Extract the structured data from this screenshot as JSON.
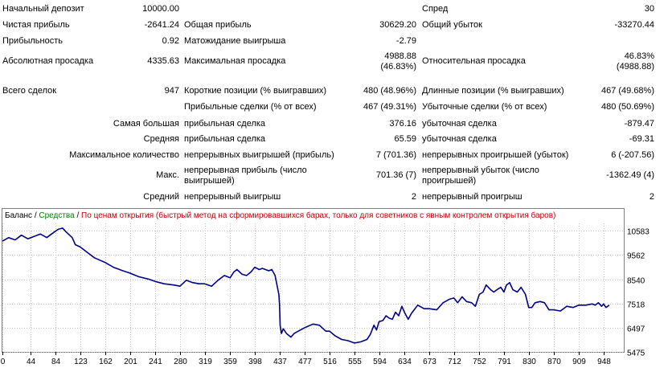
{
  "stats": {
    "deposit_label": "Начальный депозит",
    "deposit_value": "10000.00",
    "spread_label": "Спред",
    "spread_value": "30",
    "net_profit_label": "Чистая прибыль",
    "net_profit_value": "-2641.24",
    "gross_profit_label": "Общая прибыль",
    "gross_profit_value": "30629.20",
    "gross_loss_label": "Общий убыток",
    "gross_loss_value": "-33270.44",
    "profit_factor_label": "Прибыльность",
    "profit_factor_value": "0.92",
    "expected_payoff_label": "Матожидание выигрыша",
    "expected_payoff_value": "-2.79",
    "abs_drawdown_label": "Абсолютная просадка",
    "abs_drawdown_value": "4335.63",
    "max_drawdown_label": "Максимальная просадка",
    "max_drawdown_value_1": "4988.88",
    "max_drawdown_value_2": "(46.83%)",
    "rel_drawdown_label": "Относительная просадка",
    "rel_drawdown_value_1": "46.83%",
    "rel_drawdown_value_2": "(4988.88)",
    "total_trades_label": "Всего сделок",
    "total_trades_value": "947",
    "short_label": "Короткие позиции (% выигравших)",
    "short_value": "480 (48.96%)",
    "long_label": "Длинные позиции (% выигравших)",
    "long_value": "467 (49.68%)",
    "profit_trades_label": "Прибыльные сделки (% от всех)",
    "profit_trades_value": "467 (49.31%)",
    "loss_trades_label": "Убыточные сделки (% от всех)",
    "loss_trades_value": "480 (50.69%)",
    "largest_label": "Самая большая",
    "largest_profit_label": "прибыльная сделка",
    "largest_profit_value": "376.16",
    "largest_loss_label": "убыточная сделка",
    "largest_loss_value": "-879.47",
    "average_label": "Средняя",
    "average_profit_label": "прибыльная сделка",
    "average_profit_value": "65.59",
    "average_loss_label": "убыточная сделка",
    "average_loss_value": "-69.31",
    "max_count_label": "Максимальное количество",
    "max_consec_wins_label": "непрерывных выигрышей (прибыль)",
    "max_consec_wins_value": "7 (701.36)",
    "max_consec_losses_label": "непрерывных проигрышей (убыток)",
    "max_consec_losses_value": "6 (-207.56)",
    "max_label": "Макс.",
    "max_consec_profit_label_1": "непрерывная прибыль (число",
    "max_consec_profit_label_2": "выигрышей)",
    "max_consec_profit_value": "701.36 (7)",
    "max_consec_loss_label_1": "непрерывный убыток (число",
    "max_consec_loss_label_2": "проигрышей)",
    "max_consec_loss_value": "-1362.49 (4)",
    "avg_label": "Средний",
    "avg_consec_wins_label": "непрерывный выигрыш",
    "avg_consec_wins_value": "2",
    "avg_consec_losses_label": "непрерывный проигрыш",
    "avg_consec_losses_value": "2"
  },
  "legend": {
    "balance": "Баланс",
    "sep1": " / ",
    "equity": "Средства",
    "sep2": " / ",
    "mode": "По ценам открытия (быстрый метод на сформировавшихся барах, только для советников с явным контролем открытия баров)"
  },
  "colors": {
    "balance": "#00008b",
    "equity": "#008000",
    "mode": "#c00000",
    "grid": "#c0c0c0"
  },
  "chart_data": {
    "type": "line",
    "x_ticks": [
      0,
      44,
      84,
      123,
      162,
      201,
      241,
      280,
      319,
      359,
      398,
      437,
      477,
      516,
      555,
      594,
      634,
      673,
      712,
      752,
      791,
      830,
      870,
      909,
      948
    ],
    "y_ticks": [
      5475,
      6497,
      7518,
      8540,
      9562,
      10583
    ],
    "ylim": [
      5475,
      10900
    ],
    "xlim": [
      0,
      980
    ],
    "series": [
      {
        "name": "Баланс",
        "x": [
          0,
          10,
          20,
          30,
          40,
          50,
          60,
          70,
          80,
          88,
          95,
          100,
          110,
          115,
          123,
          135,
          145,
          162,
          175,
          190,
          201,
          215,
          230,
          241,
          255,
          270,
          280,
          290,
          300,
          310,
          319,
          330,
          340,
          350,
          359,
          365,
          370,
          378,
          385,
          392,
          398,
          405,
          410,
          415,
          420,
          425,
          430,
          436,
          437,
          438,
          440,
          443,
          448,
          455,
          460,
          470,
          477,
          490,
          500,
          510,
          516,
          525,
          535,
          545,
          555,
          565,
          575,
          580,
          586,
          590,
          594,
          600,
          605,
          610,
          615,
          620,
          625,
          630,
          634,
          640,
          645,
          655,
          665,
          673,
          685,
          695,
          705,
          712,
          718,
          725,
          732,
          740,
          746,
          752,
          758,
          763,
          770,
          775,
          780,
          786,
          791,
          795,
          800,
          805,
          812,
          818,
          825,
          830,
          835,
          840,
          848,
          855,
          862,
          870,
          880,
          890,
          900,
          909,
          920,
          930,
          935,
          940,
          945,
          948,
          952,
          957
        ],
        "y": [
          10150,
          10300,
          10200,
          10400,
          10250,
          10350,
          10450,
          10300,
          10500,
          10650,
          10700,
          10550,
          10300,
          10000,
          9900,
          9650,
          9450,
          9250,
          9050,
          8900,
          8800,
          8650,
          8550,
          8450,
          8350,
          8300,
          8250,
          8500,
          8400,
          8350,
          8350,
          8250,
          8500,
          8700,
          8600,
          8850,
          8950,
          8750,
          8700,
          8850,
          9050,
          8950,
          9000,
          8950,
          8900,
          8950,
          8700,
          7900,
          7500,
          6600,
          6250,
          6450,
          6250,
          6100,
          6250,
          6400,
          6500,
          6650,
          6600,
          6350,
          6350,
          6150,
          6000,
          5950,
          5850,
          5900,
          6000,
          6200,
          6600,
          6400,
          6750,
          6800,
          7000,
          6900,
          6850,
          7150,
          7000,
          7400,
          7150,
          6850,
          7100,
          7450,
          7300,
          7300,
          7250,
          7550,
          7700,
          7750,
          7550,
          7800,
          7600,
          7550,
          7400,
          7900,
          8000,
          8300,
          8100,
          8000,
          8100,
          8200,
          8000,
          8300,
          8400,
          8100,
          8000,
          8200,
          7900,
          7350,
          7350,
          7550,
          7600,
          7550,
          7250,
          7250,
          7200,
          7400,
          7350,
          7450,
          7450,
          7500,
          7450,
          7550,
          7400,
          7500,
          7350,
          7450
        ]
      }
    ],
    "title": "",
    "xlabel": "",
    "ylabel": "",
    "grid": true
  }
}
